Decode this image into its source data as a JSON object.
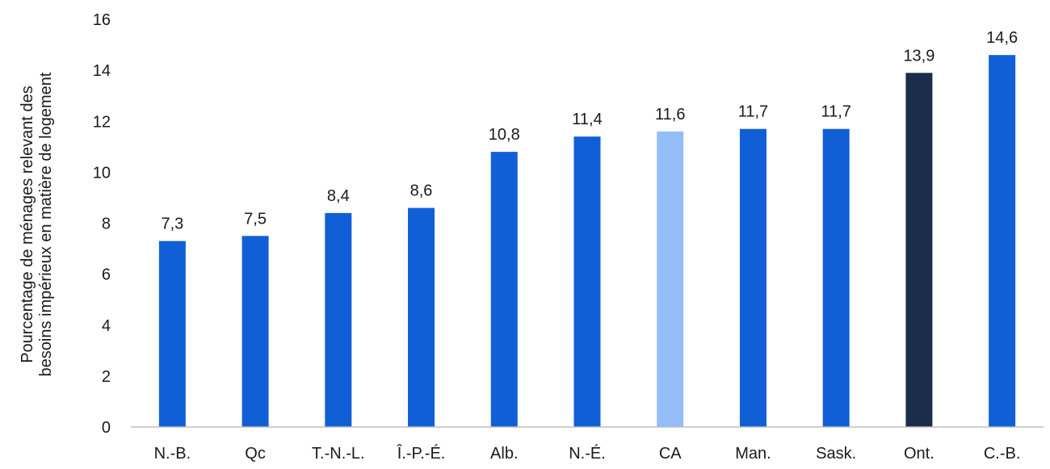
{
  "chart_data": {
    "type": "bar",
    "title": "",
    "xlabel": "",
    "ylabel_lines": [
      "Pourcentage de ménages relevant des",
      "besoins impérieux en matière de logement"
    ],
    "ylim": [
      0,
      16
    ],
    "yticks": [
      "0",
      "2",
      "4",
      "6",
      "8",
      "10",
      "12",
      "14",
      "16"
    ],
    "grid": false,
    "legend": "none",
    "categories": [
      "N.-B.",
      "Qc",
      "T.-N.-L.",
      "Î.-P.-É.",
      "Alb.",
      "N.-É.",
      "CA",
      "Man.",
      "Sask.",
      "Ont.",
      "C.-B."
    ],
    "values": [
      7.3,
      7.5,
      8.4,
      8.6,
      10.8,
      11.4,
      11.6,
      11.7,
      11.7,
      13.9,
      14.6
    ],
    "value_labels": [
      "7,3",
      "7,5",
      "8,4",
      "8,6",
      "10,8",
      "11,4",
      "11,6",
      "11,7",
      "11,7",
      "13,9",
      "14,6"
    ],
    "bar_colors": [
      "#105FD6",
      "#105FD6",
      "#105FD6",
      "#105FD6",
      "#105FD6",
      "#105FD6",
      "#94BDF7",
      "#105FD6",
      "#105FD6",
      "#1B2D4B",
      "#105FD6"
    ],
    "axis_color": "#BFBFBF"
  }
}
